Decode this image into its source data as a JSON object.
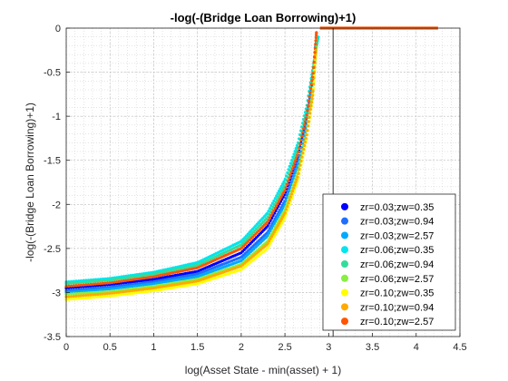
{
  "chart_data": {
    "type": "scatter",
    "title": "-log(-(Bridge Loan Borrowing)+1)",
    "xlabel": "log(Asset State - min(asset) + 1)",
    "ylabel": "-log(-(Bridge Loan Borrowing)+1)",
    "xlim": [
      0,
      4.5
    ],
    "ylim": [
      -3.5,
      0
    ],
    "xticks": [
      "0",
      "0.5",
      "1",
      "1.5",
      "2",
      "2.5",
      "3",
      "3.5",
      "4",
      "4.5"
    ],
    "yticks": [
      "0",
      "-0.5",
      "-1",
      "-1.5",
      "-2",
      "-2.5",
      "-3",
      "-3.5"
    ],
    "grid": "minor-dotted",
    "legend_position": "bottom-right",
    "vertical_line_x": 3.05,
    "series": [
      {
        "name": "zr=0.03;zw=0.35",
        "color": "#0000ff",
        "x_start": 2.87,
        "y_start": -2.95,
        "points": [
          [
            0,
            -2.95
          ],
          [
            0.5,
            -2.91
          ],
          [
            1,
            -2.85
          ],
          [
            1.5,
            -2.76
          ],
          [
            2,
            -2.55
          ],
          [
            2.3,
            -2.25
          ],
          [
            2.5,
            -1.88
          ],
          [
            2.65,
            -1.45
          ],
          [
            2.75,
            -1.0
          ],
          [
            2.82,
            -0.55
          ],
          [
            2.87,
            -0.12
          ]
        ]
      },
      {
        "name": "zr=0.03;zw=0.94",
        "color": "#1f6fff",
        "x_start": 2.86,
        "y_start": -2.98,
        "points": [
          [
            0,
            -2.98
          ],
          [
            0.5,
            -2.94
          ],
          [
            1,
            -2.88
          ],
          [
            1.5,
            -2.79
          ],
          [
            2,
            -2.6
          ],
          [
            2.3,
            -2.32
          ],
          [
            2.5,
            -1.96
          ],
          [
            2.65,
            -1.52
          ],
          [
            2.75,
            -1.05
          ],
          [
            2.82,
            -0.6
          ],
          [
            2.86,
            -0.15
          ]
        ]
      },
      {
        "name": "zr=0.03;zw=2.57",
        "color": "#00aaff",
        "x_start": 2.85,
        "y_start": -3.0,
        "points": [
          [
            0,
            -3.0
          ],
          [
            0.5,
            -2.96
          ],
          [
            1,
            -2.9
          ],
          [
            1.5,
            -2.82
          ],
          [
            2,
            -2.64
          ],
          [
            2.3,
            -2.36
          ],
          [
            2.5,
            -2.0
          ],
          [
            2.65,
            -1.56
          ],
          [
            2.75,
            -1.1
          ],
          [
            2.82,
            -0.65
          ],
          [
            2.85,
            -0.2
          ]
        ]
      },
      {
        "name": "zr=0.06;zw=0.35",
        "color": "#00e5ee",
        "x_start": 2.88,
        "y_start": -2.88,
        "points": [
          [
            0,
            -2.88
          ],
          [
            0.5,
            -2.84
          ],
          [
            1,
            -2.77
          ],
          [
            1.5,
            -2.66
          ],
          [
            2,
            -2.42
          ],
          [
            2.3,
            -2.1
          ],
          [
            2.5,
            -1.72
          ],
          [
            2.65,
            -1.3
          ],
          [
            2.75,
            -0.88
          ],
          [
            2.82,
            -0.45
          ],
          [
            2.88,
            -0.1
          ]
        ]
      },
      {
        "name": "zr=0.06;zw=0.94",
        "color": "#33dd99",
        "x_start": 2.87,
        "y_start": -2.9,
        "points": [
          [
            0,
            -2.9
          ],
          [
            0.5,
            -2.86
          ],
          [
            1,
            -2.79
          ],
          [
            1.5,
            -2.69
          ],
          [
            2,
            -2.46
          ],
          [
            2.3,
            -2.15
          ],
          [
            2.5,
            -1.78
          ],
          [
            2.65,
            -1.36
          ],
          [
            2.75,
            -0.93
          ],
          [
            2.82,
            -0.5
          ],
          [
            2.87,
            -0.12
          ]
        ]
      },
      {
        "name": "zr=0.06;zw=2.57",
        "color": "#88ee44",
        "x_start": 2.86,
        "y_start": -3.02,
        "points": [
          [
            0,
            -3.02
          ],
          [
            0.5,
            -2.99
          ],
          [
            1,
            -2.93
          ],
          [
            1.5,
            -2.85
          ],
          [
            2,
            -2.68
          ],
          [
            2.3,
            -2.42
          ],
          [
            2.5,
            -2.06
          ],
          [
            2.65,
            -1.63
          ],
          [
            2.75,
            -1.16
          ],
          [
            2.82,
            -0.7
          ],
          [
            2.86,
            -0.22
          ]
        ]
      },
      {
        "name": "zr=0.10;zw=0.35",
        "color": "#ffff00",
        "x_start": 2.85,
        "y_start": -3.08,
        "points": [
          [
            0,
            -3.08
          ],
          [
            0.5,
            -3.04
          ],
          [
            1,
            -2.98
          ],
          [
            1.5,
            -2.9
          ],
          [
            2,
            -2.74
          ],
          [
            2.3,
            -2.5
          ],
          [
            2.5,
            -2.15
          ],
          [
            2.65,
            -1.72
          ],
          [
            2.75,
            -1.25
          ],
          [
            2.82,
            -0.78
          ],
          [
            2.85,
            -0.3
          ]
        ]
      },
      {
        "name": "zr=0.10;zw=0.94",
        "color": "#ffaa00",
        "x_start": 2.85,
        "y_start": -3.05,
        "points": [
          [
            0,
            -3.05
          ],
          [
            0.5,
            -3.01
          ],
          [
            1,
            -2.95
          ],
          [
            1.5,
            -2.87
          ],
          [
            2,
            -2.7
          ],
          [
            2.3,
            -2.45
          ],
          [
            2.5,
            -2.1
          ],
          [
            2.65,
            -1.67
          ],
          [
            2.75,
            -1.2
          ],
          [
            2.82,
            -0.74
          ],
          [
            2.85,
            -0.26
          ]
        ]
      },
      {
        "name": "zr=0.10;zw=2.57",
        "color": "#ff5500",
        "x_start": 2.86,
        "y_start": -2.93,
        "points": [
          [
            0,
            -2.93
          ],
          [
            0.5,
            -2.89
          ],
          [
            1,
            -2.82
          ],
          [
            1.5,
            -2.72
          ],
          [
            2,
            -2.5
          ],
          [
            2.3,
            -2.2
          ],
          [
            2.5,
            -1.84
          ],
          [
            2.65,
            -1.42
          ],
          [
            2.75,
            -0.98
          ],
          [
            2.82,
            -0.52
          ],
          [
            2.86,
            -0.05
          ]
        ]
      }
    ],
    "flat_segment": {
      "color": "#ff5500",
      "x": [
        2.9,
        4.25
      ],
      "y": 0
    }
  }
}
